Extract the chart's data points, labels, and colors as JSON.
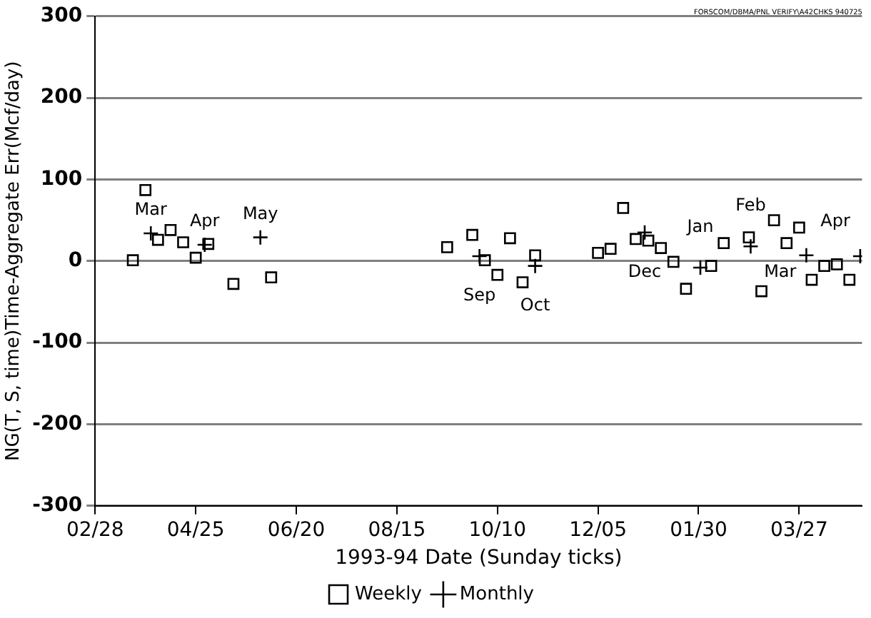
{
  "chart_data": {
    "type": "scatter",
    "xlabel": "1993-94 Date (Sunday ticks)",
    "ylabel": "NG(T, S, time)Time-Aggregate Err(Mcf/day)",
    "xlim": [
      "1993-02-28",
      "1994-05-01"
    ],
    "xticks": [
      {
        "value": "1993-02-28",
        "label": "02/28"
      },
      {
        "value": "1993-04-25",
        "label": "04/25"
      },
      {
        "value": "1993-06-20",
        "label": "06/20"
      },
      {
        "value": "1993-08-15",
        "label": "08/15"
      },
      {
        "value": "1993-10-10",
        "label": "10/10"
      },
      {
        "value": "1993-12-05",
        "label": "12/05"
      },
      {
        "value": "1994-01-30",
        "label": "01/30"
      },
      {
        "value": "1994-03-27",
        "label": "03/27"
      }
    ],
    "ylim": [
      -300,
      300
    ],
    "yticks": [
      -300,
      -200,
      -100,
      0,
      100,
      200,
      300
    ],
    "grid": "y",
    "legend": "bottom",
    "series": [
      {
        "name": "Weekly",
        "color": "#000000",
        "marker": "square",
        "x": [
          "1993-03-21",
          "1993-03-28",
          "1993-04-04",
          "1993-04-11",
          "1993-04-18",
          "1993-04-25",
          "1993-05-02",
          "1993-05-16",
          "1993-06-06",
          "1993-09-12",
          "1993-09-26",
          "1993-10-03",
          "1993-10-10",
          "1993-10-17",
          "1993-10-24",
          "1993-10-31",
          "1993-12-05",
          "1993-12-12",
          "1993-12-19",
          "1993-12-26",
          "1994-01-02",
          "1994-01-09",
          "1994-01-16",
          "1994-01-23",
          "1994-02-06",
          "1994-02-13",
          "1994-02-27",
          "1994-03-06",
          "1994-03-13",
          "1994-03-20",
          "1994-03-27",
          "1994-04-03",
          "1994-04-10",
          "1994-04-17",
          "1994-04-24"
        ],
        "values": [
          1,
          87,
          26,
          38,
          23,
          4,
          21,
          -28,
          -20,
          17,
          32,
          1,
          -17,
          28,
          -26,
          7,
          10,
          15,
          65,
          27,
          25,
          16,
          -1,
          -34,
          -6,
          22,
          29,
          -37,
          50,
          22,
          41,
          -23,
          -6,
          -4,
          -23
        ]
      },
      {
        "name": "Monthly",
        "color": "#000000",
        "marker": "cross",
        "x": [
          "1993-03-31",
          "1993-04-30",
          "1993-05-31",
          "1993-09-30",
          "1993-10-31",
          "1993-12-31",
          "1994-01-31",
          "1994-02-28",
          "1994-03-31",
          "1994-04-30"
        ],
        "values": [
          34,
          20,
          29,
          6,
          -6,
          35,
          -8,
          18,
          7,
          6
        ]
      }
    ],
    "annotations": [
      {
        "text": "Mar",
        "x": "1993-03-31",
        "y": 34
      },
      {
        "text": "Apr",
        "x": "1993-04-30",
        "y": 20
      },
      {
        "text": "May",
        "x": "1993-05-31",
        "y": 29
      },
      {
        "text": "Sep",
        "x": "1993-09-30",
        "y": 6
      },
      {
        "text": "Oct",
        "x": "1993-10-31",
        "y": -6
      },
      {
        "text": "Dec",
        "x": "1993-12-31",
        "y": 35
      },
      {
        "text": "Jan",
        "x": "1994-01-31",
        "y": -8
      },
      {
        "text": "Feb",
        "x": "1994-02-28",
        "y": 18
      },
      {
        "text": "Mar",
        "x": "1994-03-31",
        "y": 7
      },
      {
        "text": "Apr",
        "x": "1994-04-30",
        "y": 6
      },
      "FORSCOM/DBMA/PNL VERIFY\\A42CHKS 940725"
    ]
  }
}
